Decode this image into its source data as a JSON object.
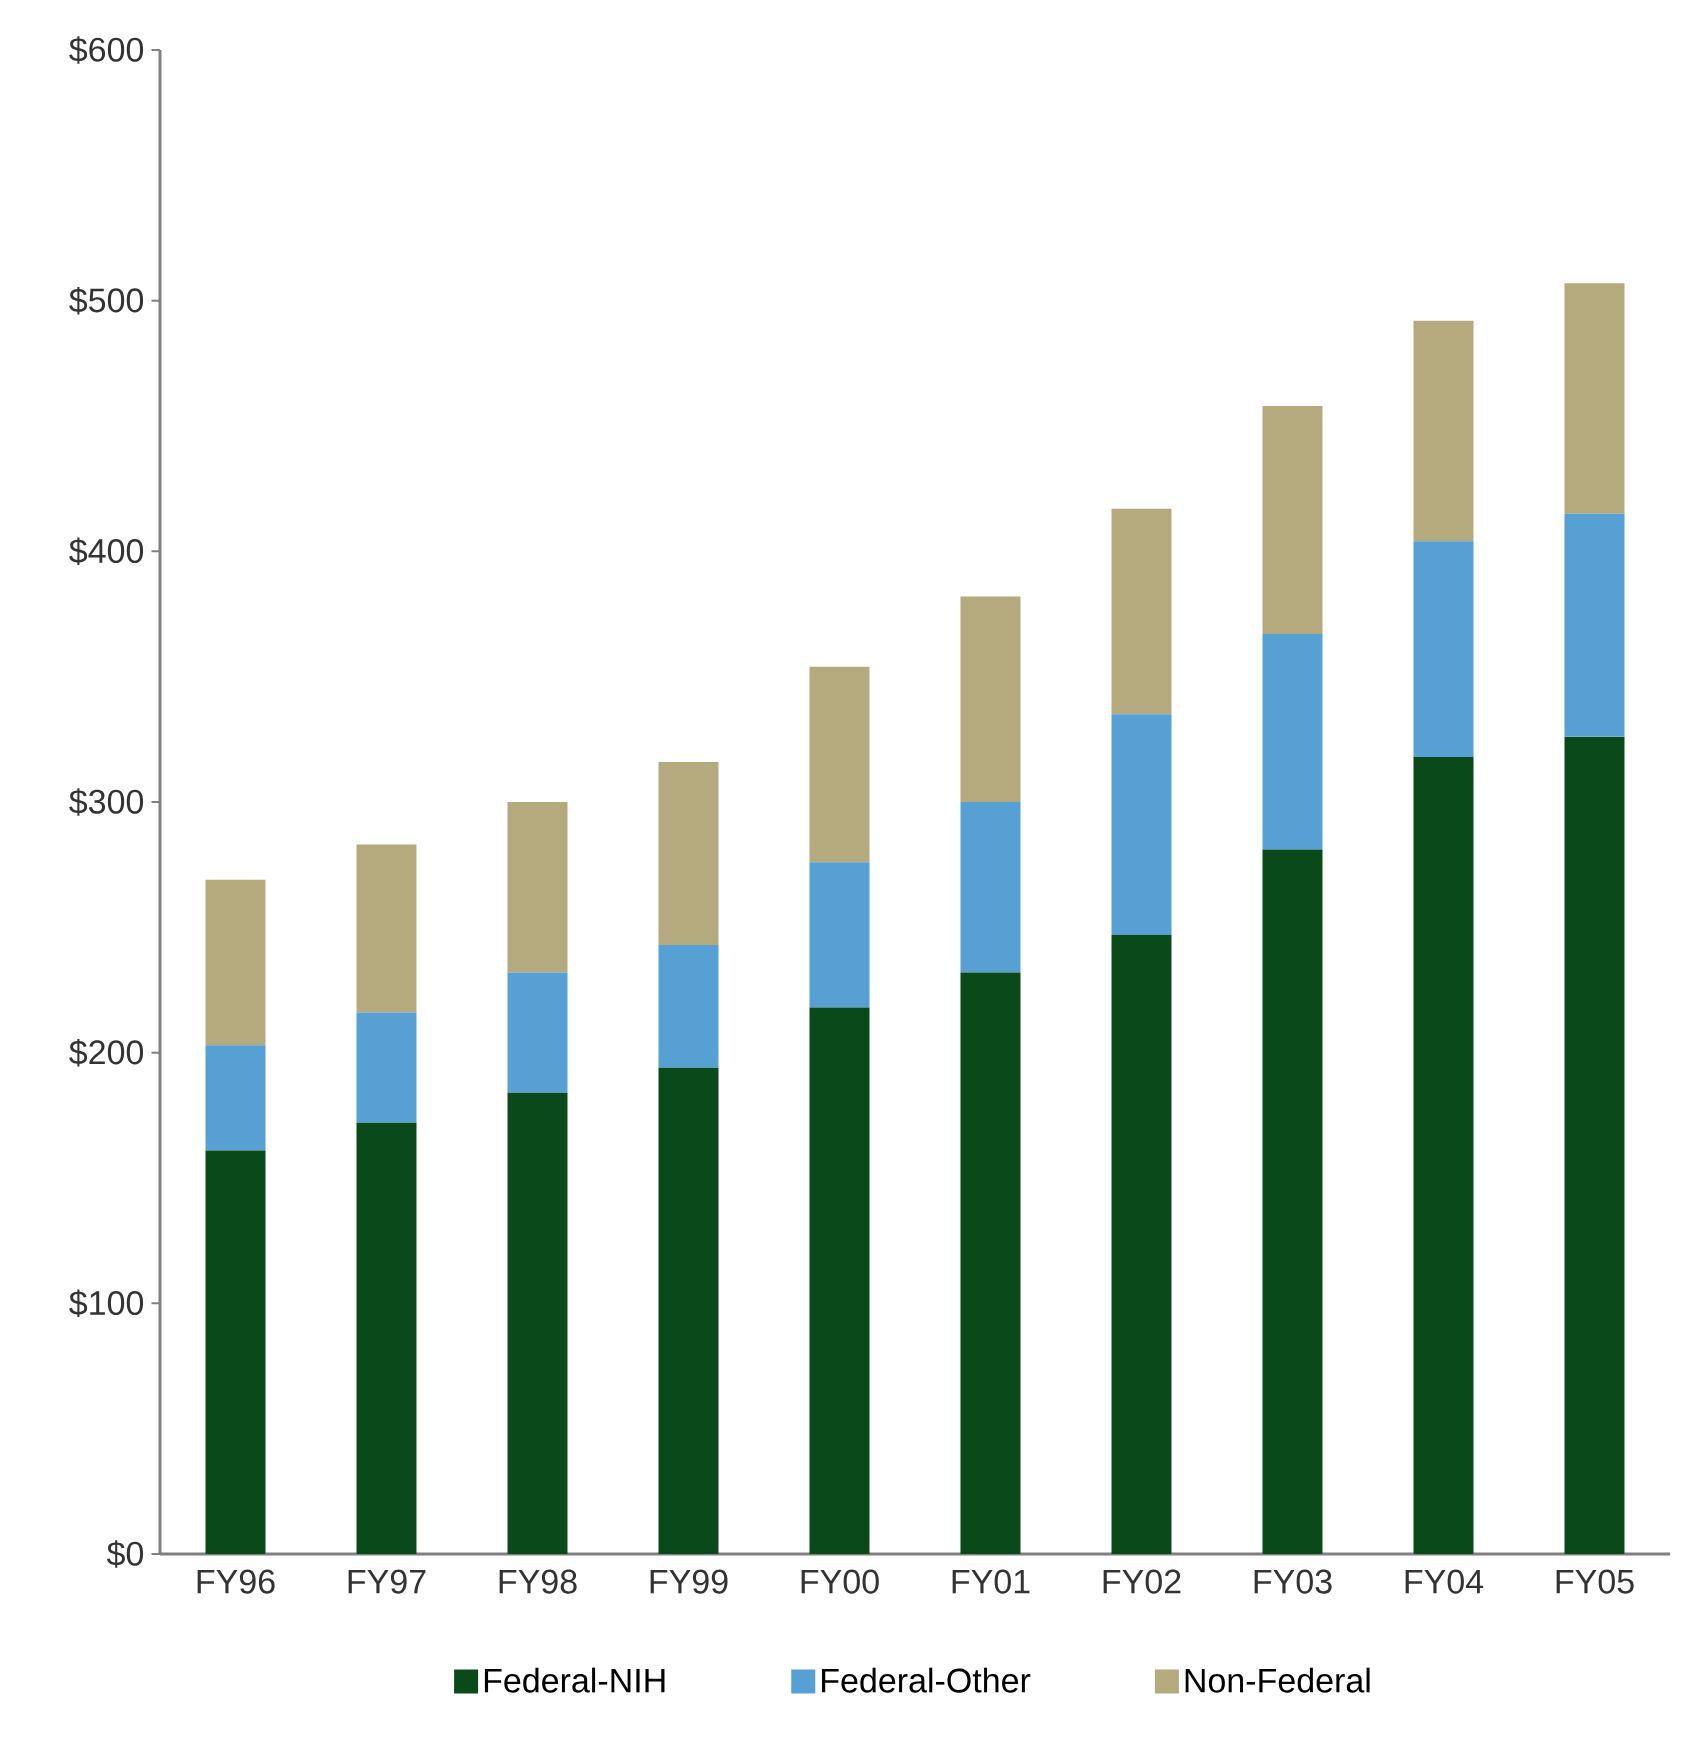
{
  "chart_data": {
    "type": "bar",
    "stacked": true,
    "categories": [
      "FY96",
      "FY97",
      "FY98",
      "FY99",
      "FY00",
      "FY01",
      "FY02",
      "FY03",
      "FY04",
      "FY05"
    ],
    "series": [
      {
        "name": "Federal-NIH",
        "color": "#0a4a1a",
        "values": [
          161,
          172,
          184,
          194,
          218,
          232,
          247,
          281,
          318,
          326
        ]
      },
      {
        "name": "Federal-Other",
        "color": "#56a0d3",
        "values": [
          42,
          44,
          48,
          49,
          58,
          68,
          88,
          86,
          86,
          89
        ]
      },
      {
        "name": "Non-Federal",
        "color": "#b5aa7e",
        "values": [
          66,
          67,
          68,
          73,
          78,
          82,
          82,
          91,
          88,
          92
        ]
      }
    ],
    "ylim": [
      0,
      600
    ],
    "yticks": [
      {
        "value": 0,
        "label": "$0"
      },
      {
        "value": 100,
        "label": "$100"
      },
      {
        "value": 200,
        "label": "$200"
      },
      {
        "value": 300,
        "label": "$300"
      },
      {
        "value": 400,
        "label": "$400"
      },
      {
        "value": 500,
        "label": "$500"
      },
      {
        "value": 600,
        "label": "$600"
      }
    ],
    "grid": false,
    "legend": "bottom"
  }
}
